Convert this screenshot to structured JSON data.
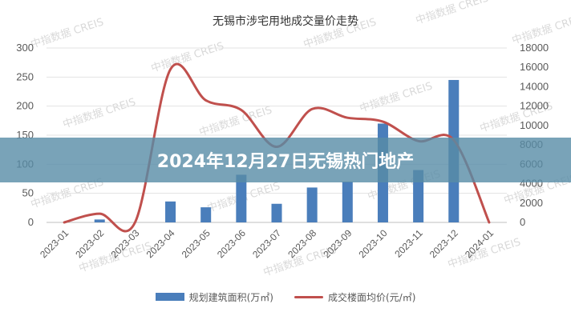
{
  "banner": {
    "text": "2024年12月27日无锡热门地产"
  },
  "watermark": {
    "text": "中指数据 CREIS"
  },
  "legend": {
    "bar_label": "规划建筑面积(万㎡)",
    "line_label": "成交楼面均价(元/㎡)"
  },
  "colors": {
    "bar": "#4a7ebb",
    "line": "#c0504d",
    "banner": "#588ca6"
  },
  "chart_data": {
    "type": "bar",
    "title": "无锡市涉宅用地成交量价走势",
    "categories": [
      "2023-01",
      "2023-02",
      "2023-03",
      "2023-04",
      "2023-05",
      "2023-06",
      "2023-07",
      "2023-08",
      "2023-09",
      "2023-10",
      "2023-11",
      "2023-12",
      "2024-01"
    ],
    "y_left": {
      "ylim": [
        0,
        300
      ],
      "ticks": [
        0,
        50,
        100,
        150,
        200,
        250,
        300
      ]
    },
    "y_right": {
      "ylim": [
        0,
        18000
      ],
      "ticks": [
        0,
        2000,
        4000,
        6000,
        8000,
        10000,
        12000,
        14000,
        16000,
        18000
      ]
    },
    "series": [
      {
        "name": "规划建筑面积(万㎡)",
        "type": "bar",
        "axis": "left",
        "values": [
          0,
          5,
          0,
          36,
          26,
          82,
          32,
          60,
          70,
          170,
          90,
          245,
          0
        ]
      },
      {
        "name": "成交楼面均价(元/㎡)",
        "type": "line",
        "axis": "right",
        "values": [
          0,
          900,
          0,
          15800,
          12600,
          11600,
          7800,
          11700,
          10800,
          10400,
          8400,
          8500,
          0
        ]
      }
    ],
    "grid": true,
    "legend_position": "bottom"
  }
}
